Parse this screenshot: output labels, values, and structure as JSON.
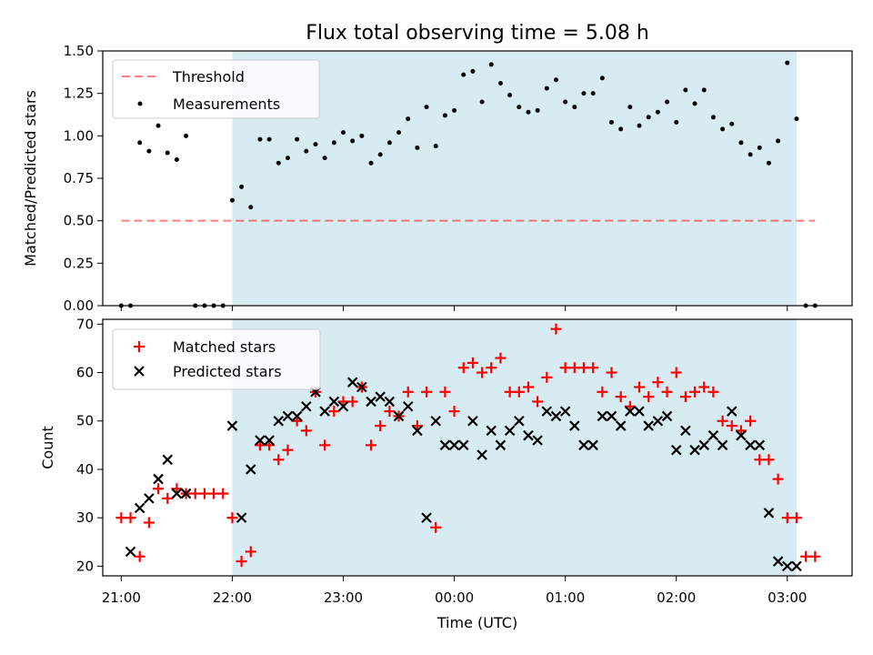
{
  "colors": {
    "shade": "#add8e6",
    "threshold": "#ff0000",
    "measurements": "#000000",
    "matched": "#ff0000",
    "predicted": "#000000"
  },
  "chart_data": [
    {
      "type": "scatter",
      "title": "Flux total observing time = 5.08 h",
      "xlabel": "",
      "ylabel": "Matched/Predicted stars",
      "xlim": [
        "20:50",
        "03:35"
      ],
      "ylim": [
        0,
        1.5
      ],
      "yticks": [
        "0.00",
        "0.25",
        "0.50",
        "0.75",
        "1.00",
        "1.25",
        "1.50"
      ],
      "shaded_span": [
        "22:00",
        "03:05"
      ],
      "legend": {
        "location": "upper-left",
        "entries": [
          "Threshold",
          "Measurements"
        ]
      },
      "threshold": {
        "name": "Threshold",
        "y": 0.5,
        "x": [
          "21:00",
          "03:15"
        ],
        "style": "dashed"
      },
      "series": [
        {
          "name": "Measurements",
          "marker": "dot",
          "x": [
            "21:00",
            "21:05",
            "21:10",
            "21:15",
            "21:20",
            "21:25",
            "21:30",
            "21:35",
            "21:40",
            "21:45",
            "21:50",
            "21:55",
            "22:00",
            "22:05",
            "22:10",
            "22:15",
            "22:20",
            "22:25",
            "22:30",
            "22:35",
            "22:40",
            "22:45",
            "22:50",
            "22:55",
            "23:00",
            "23:05",
            "23:10",
            "23:15",
            "23:20",
            "23:25",
            "23:30",
            "23:35",
            "23:40",
            "23:45",
            "23:50",
            "23:55",
            "00:00",
            "00:05",
            "00:10",
            "00:15",
            "00:20",
            "00:25",
            "00:30",
            "00:35",
            "00:40",
            "00:45",
            "00:50",
            "00:55",
            "01:00",
            "01:05",
            "01:10",
            "01:15",
            "01:20",
            "01:25",
            "01:30",
            "01:35",
            "01:40",
            "01:45",
            "01:50",
            "01:55",
            "02:00",
            "02:05",
            "02:10",
            "02:15",
            "02:20",
            "02:25",
            "02:30",
            "02:35",
            "02:40",
            "02:45",
            "02:50",
            "02:55",
            "03:00",
            "03:05",
            "03:10",
            "03:15"
          ],
          "y": [
            0,
            0,
            0.96,
            0.91,
            1.06,
            0.9,
            0.86,
            1.0,
            0,
            0,
            0,
            0,
            0.62,
            0.7,
            0.58,
            0.98,
            0.98,
            0.84,
            0.87,
            0.98,
            0.91,
            0.95,
            0.87,
            0.96,
            1.02,
            0.97,
            1.0,
            0.84,
            0.89,
            0.96,
            1.02,
            1.1,
            0.93,
            1.17,
            0.94,
            1.12,
            1.15,
            1.36,
            1.38,
            1.2,
            1.42,
            1.31,
            1.24,
            1.17,
            1.14,
            1.15,
            1.28,
            1.33,
            1.2,
            1.17,
            1.25,
            1.25,
            1.34,
            1.08,
            1.04,
            1.17,
            1.06,
            1.11,
            1.14,
            1.2,
            1.08,
            1.27,
            1.19,
            1.27,
            1.11,
            1.04,
            1.07,
            0.96,
            0.89,
            0.93,
            0.84,
            0.97,
            1.43,
            1.1,
            0,
            0
          ]
        }
      ]
    },
    {
      "type": "scatter",
      "title": "",
      "xlabel": "Time (UTC)",
      "ylabel": "Count",
      "xlim": [
        "20:50",
        "03:35"
      ],
      "ylim": [
        18,
        71
      ],
      "xticks": [
        "21:00",
        "22:00",
        "23:00",
        "00:00",
        "01:00",
        "02:00",
        "03:00"
      ],
      "yticks": [
        "20",
        "30",
        "40",
        "50",
        "60",
        "70"
      ],
      "shaded_span": [
        "22:00",
        "03:05"
      ],
      "legend": {
        "location": "upper-left",
        "entries": [
          "Matched stars",
          "Predicted stars"
        ]
      },
      "series": [
        {
          "name": "Matched stars",
          "marker": "plus",
          "x": [
            "21:00",
            "21:05",
            "21:10",
            "21:15",
            "21:20",
            "21:25",
            "21:30",
            "21:35",
            "21:40",
            "21:45",
            "21:50",
            "21:55",
            "22:00",
            "22:05",
            "22:10",
            "22:15",
            "22:20",
            "22:25",
            "22:30",
            "22:35",
            "22:40",
            "22:45",
            "22:50",
            "22:55",
            "23:00",
            "23:05",
            "23:10",
            "23:15",
            "23:20",
            "23:25",
            "23:30",
            "23:35",
            "23:40",
            "23:45",
            "23:50",
            "23:55",
            "00:00",
            "00:05",
            "00:10",
            "00:15",
            "00:20",
            "00:25",
            "00:30",
            "00:35",
            "00:40",
            "00:45",
            "00:50",
            "00:55",
            "01:00",
            "01:05",
            "01:10",
            "01:15",
            "01:20",
            "01:25",
            "01:30",
            "01:35",
            "01:40",
            "01:45",
            "01:50",
            "01:55",
            "02:00",
            "02:05",
            "02:10",
            "02:15",
            "02:20",
            "02:25",
            "02:30",
            "02:35",
            "02:40",
            "02:45",
            "02:50",
            "02:55",
            "03:00",
            "03:05",
            "03:10",
            "03:15"
          ],
          "y": [
            30,
            30,
            22,
            29,
            36,
            34,
            36,
            35,
            35,
            35,
            35,
            35,
            30,
            21,
            23,
            45,
            45,
            42,
            44,
            50,
            48,
            56,
            45,
            52,
            54,
            54,
            57,
            45,
            49,
            52,
            51,
            56,
            49,
            56,
            28,
            56,
            52,
            61,
            62,
            60,
            61,
            63,
            56,
            56,
            57,
            54,
            59,
            69,
            61,
            61,
            61,
            61,
            56,
            60,
            55,
            53,
            57,
            55,
            58,
            56,
            60,
            55,
            56,
            57,
            56,
            50,
            49,
            48,
            50,
            42,
            42,
            38,
            30,
            30,
            22,
            22
          ]
        },
        {
          "name": "Predicted stars",
          "marker": "x",
          "x": [
            "21:05",
            "21:10",
            "21:15",
            "21:20",
            "21:25",
            "21:30",
            "21:35",
            "22:00",
            "22:05",
            "22:10",
            "22:15",
            "22:20",
            "22:25",
            "22:30",
            "22:35",
            "22:40",
            "22:45",
            "22:50",
            "22:55",
            "23:00",
            "23:05",
            "23:10",
            "23:15",
            "23:20",
            "23:25",
            "23:30",
            "23:35",
            "23:40",
            "23:45",
            "23:50",
            "23:55",
            "00:00",
            "00:05",
            "00:10",
            "00:15",
            "00:20",
            "00:25",
            "00:30",
            "00:35",
            "00:40",
            "00:45",
            "00:50",
            "00:55",
            "01:00",
            "01:05",
            "01:10",
            "01:15",
            "01:20",
            "01:25",
            "01:30",
            "01:35",
            "01:40",
            "01:45",
            "01:50",
            "01:55",
            "02:00",
            "02:05",
            "02:10",
            "02:15",
            "02:20",
            "02:25",
            "02:30",
            "02:35",
            "02:40",
            "02:45",
            "02:50",
            "02:55",
            "03:00",
            "03:05"
          ],
          "y": [
            23,
            32,
            34,
            38,
            42,
            35,
            35,
            49,
            30,
            40,
            46,
            46,
            50,
            51,
            51,
            53,
            56,
            52,
            54,
            53,
            58,
            57,
            54,
            55,
            54,
            51,
            53,
            48,
            30,
            50,
            45,
            45,
            45,
            50,
            43,
            48,
            45,
            48,
            50,
            47,
            46,
            52,
            51,
            52,
            49,
            45,
            45,
            51,
            51,
            49,
            52,
            52,
            49,
            50,
            51,
            44,
            48,
            44,
            45,
            47,
            45,
            52,
            47,
            45,
            45,
            31,
            21,
            20,
            20
          ]
        }
      ]
    }
  ]
}
